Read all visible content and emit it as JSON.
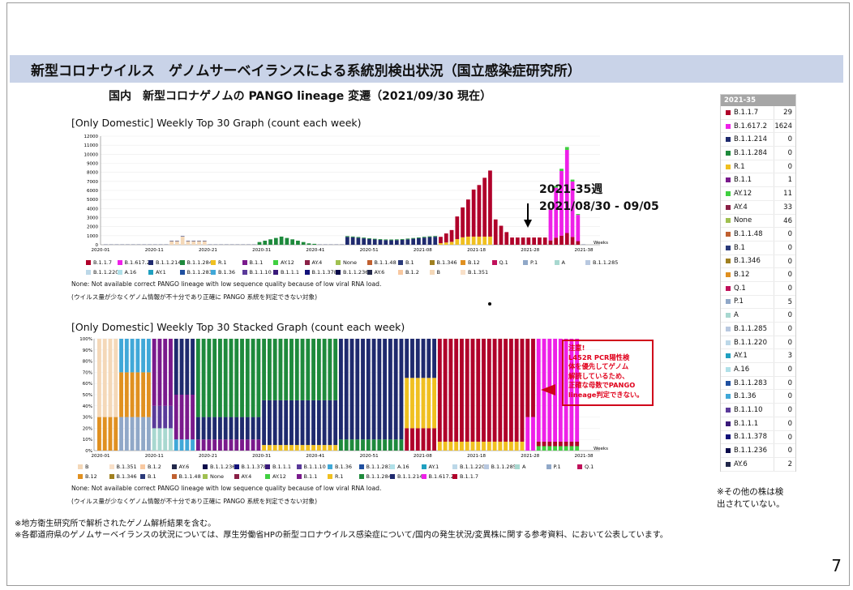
{
  "header": {
    "title": "新型コロナウイルス　ゲノムサーベイランスによる系統別検出状況（国立感染症研究所）",
    "subtitle": "国内　新型コロナゲノムの PANGO lineage 変遷（2021/09/30 現在）"
  },
  "chart1_title": "[Only Domestic] Weekly Top 30 Graph (count each week)",
  "chart2_title": "[Only Domestic] Weekly Top 30 Stacked Graph (count each week)",
  "none_note": "None: Not available correct PANGO lineage with low sequence quality because of low viral RNA load.",
  "jp_note": "(ウイルス量が少なくゲノム情報が不十分であり正確に PANGO 系統を判定できない対象)",
  "annotation": {
    "line1": "2021-35週",
    "line2": "2021/08/30 - 09/05"
  },
  "warning": {
    "line1": "注意!",
    "line2": "L452R PCR陽性検",
    "line3": "体を優先してゲノム",
    "line4": "解読しているため、",
    "line5": "正確な母数でPANGO",
    "line6": "lineage判定できない。"
  },
  "weeks_label": "Weeks",
  "footnotes": [
    "※地方衛生研究所で解析されたゲノム解析結果を含む。",
    "※各都道府県のゲノムサーベイランスの状況については、厚生労働省HPの新型コロナウイルス感染症について/国内の発生状況/変異株に関する参考資料、において公表しています。"
  ],
  "page_number": "7",
  "side_table": {
    "header": "2021-35",
    "rows": [
      {
        "name": "B.1.1.7",
        "count": "29",
        "color": "#b0002a"
      },
      {
        "name": "B.1.617.2",
        "count": "1624",
        "color": "#ee20e8"
      },
      {
        "name": "B.1.1.214",
        "count": "0",
        "color": "#1f2a6e"
      },
      {
        "name": "B.1.1.284",
        "count": "0",
        "color": "#1e8a3c"
      },
      {
        "name": "R.1",
        "count": "0",
        "color": "#f0c020"
      },
      {
        "name": "B.1.1",
        "count": "1",
        "color": "#7a1a8c"
      },
      {
        "name": "AY.12",
        "count": "11",
        "color": "#40d040"
      },
      {
        "name": "AY.4",
        "count": "33",
        "color": "#8a2046"
      },
      {
        "name": "None",
        "count": "46",
        "color": "#a0c050"
      },
      {
        "name": "B.1.1.48",
        "count": "0",
        "color": "#c06030"
      },
      {
        "name": "B.1",
        "count": "0",
        "color": "#2a3a7a"
      },
      {
        "name": "B.1.346",
        "count": "0",
        "color": "#a08020"
      },
      {
        "name": "B.12",
        "count": "0",
        "color": "#e09020"
      },
      {
        "name": "Q.1",
        "count": "0",
        "color": "#c0105a"
      },
      {
        "name": "P.1",
        "count": "5",
        "color": "#90a8c8"
      },
      {
        "name": "A",
        "count": "0",
        "color": "#a8d8d0"
      },
      {
        "name": "B.1.1.285",
        "count": "0",
        "color": "#b8c8e0"
      },
      {
        "name": "B.1.1.220",
        "count": "0",
        "color": "#bcd8e8"
      },
      {
        "name": "AY.1",
        "count": "3",
        "color": "#20a0c0"
      },
      {
        "name": "A.16",
        "count": "0",
        "color": "#b0e0e8"
      },
      {
        "name": "B.1.1.283",
        "count": "0",
        "color": "#2050a0"
      },
      {
        "name": "B.1.36",
        "count": "0",
        "color": "#40a8d8"
      },
      {
        "name": "B.1.1.10",
        "count": "0",
        "color": "#5a3a9a"
      },
      {
        "name": "B.1.1.1",
        "count": "0",
        "color": "#3a1a7a"
      },
      {
        "name": "B.1.1.378",
        "count": "0",
        "color": "#12127a"
      },
      {
        "name": "B.1.1.236",
        "count": "0",
        "color": "#0a0a4a"
      },
      {
        "name": "AY.6",
        "count": "2",
        "color": "#22284a"
      }
    ]
  },
  "side_note": [
    "※その他の株は検",
    "出されていない。"
  ],
  "legend1": [
    "B.1.1.7",
    "B.1.617.2",
    "B.1.1.214",
    "B.1.1.284",
    "R.1",
    "B.1.1",
    "AY.12",
    "AY.4",
    "None",
    "B.1.1.48",
    "B.1",
    "B.1.346",
    "B.12",
    "Q.1",
    "P.1",
    "A",
    "B.1.1.285",
    "B.1.1.220",
    "A.16",
    "AY.1",
    "B.1.1.283",
    "B.1.36",
    "B.1.1.10",
    "B.1.1.1",
    "B.1.1.378",
    "B.1.1.236",
    "AY.6",
    "B.1.2",
    "B",
    "B.1.351"
  ],
  "legend2": [
    "B",
    "B.1.351",
    "B.1.2",
    "AY.6",
    "B.1.1.236",
    "B.1.1.378",
    "B.1.1.1",
    "B.1.1.10",
    "B.1.36",
    "B.1.1.283",
    "A.16",
    "AY.1",
    "B.1.1.220",
    "B.1.1.285",
    "A",
    "P.1",
    "Q.1",
    "B.12",
    "B.1.346",
    "B.1",
    "B.1.1.48",
    "None",
    "AY.4",
    "AY.12",
    "B.1.1",
    "R.1",
    "B.1.1.284",
    "B.1.1.214",
    "B.1.617.2",
    "B.1.1.7"
  ],
  "legend_colors": {
    "B.1.1.7": "#b0002a",
    "B.1.617.2": "#ee20e8",
    "B.1.1.214": "#1f2a6e",
    "B.1.1.284": "#1e8a3c",
    "R.1": "#f0c020",
    "B.1.1": "#7a1a8c",
    "AY.12": "#40d040",
    "AY.4": "#8a2046",
    "None": "#a0c050",
    "B.1.1.48": "#c06030",
    "B.1": "#2a3a7a",
    "B.1.346": "#a08020",
    "B.12": "#e09020",
    "Q.1": "#c0105a",
    "P.1": "#90a8c8",
    "A": "#a8d8d0",
    "B.1.1.285": "#b8c8e0",
    "B.1.1.220": "#bcd8e8",
    "A.16": "#b0e0e8",
    "AY.1": "#20a0c0",
    "B.1.1.283": "#2050a0",
    "B.1.36": "#40a8d8",
    "B.1.1.10": "#5a3a9a",
    "B.1.1.1": "#3a1a7a",
    "B.1.1.378": "#12127a",
    "B.1.1.236": "#0a0a4a",
    "AY.6": "#22284a",
    "B.1.2": "#f8c8a0",
    "B": "#f4d8b8",
    "B.1.351": "#f8e0c8"
  },
  "chart_data": [
    {
      "type": "bar",
      "title": "[Only Domestic] Weekly Top 30 Graph (count each week)",
      "xlabel": "Weeks",
      "ylim": [
        0,
        12000
      ],
      "yticks": [
        "0",
        "1000",
        "2000",
        "3000",
        "4000",
        "5000",
        "6000",
        "7000",
        "8000",
        "9000",
        "10000",
        "11000",
        "12000"
      ],
      "xticks": [
        "2020-01",
        "2020-11",
        "2020-21",
        "2020-31",
        "2020-41",
        "2020-51",
        "2021-08",
        "2021-18",
        "2021-28",
        "2021-38"
      ],
      "series": [
        {
          "name": "B.1.1.214",
          "values": [
            0,
            0,
            0,
            0,
            0,
            0,
            0,
            0,
            0,
            0,
            0,
            0,
            0,
            0,
            0,
            0,
            0,
            0,
            0,
            0,
            0,
            0,
            0,
            0,
            0,
            0,
            0,
            0,
            0,
            0,
            0,
            0,
            0,
            0,
            0,
            0,
            0,
            0,
            0,
            0,
            0,
            0,
            0,
            0,
            0,
            0,
            0,
            0,
            0,
            0,
            0,
            0,
            0,
            0,
            0,
            0,
            0,
            0,
            0,
            0,
            0,
            0,
            0,
            0,
            0,
            0,
            0,
            0,
            0,
            0,
            0,
            0,
            0,
            0,
            0,
            0,
            0,
            0,
            0,
            0,
            0,
            0,
            0,
            0,
            0,
            0,
            0,
            0
          ]
        },
        {
          "name": "B.1.1.7",
          "values": []
        }
      ]
    },
    {
      "type": "bar",
      "title": "[Only Domestic] Weekly Top 30 Stacked Graph (count each week)",
      "xlabel": "Weeks",
      "stacked": "percent",
      "ylim": [
        0,
        100
      ],
      "yticks": [
        "0%",
        "10%",
        "20%",
        "30%",
        "40%",
        "50%",
        "60%",
        "70%",
        "80%",
        "90%",
        "100%"
      ]
    }
  ]
}
